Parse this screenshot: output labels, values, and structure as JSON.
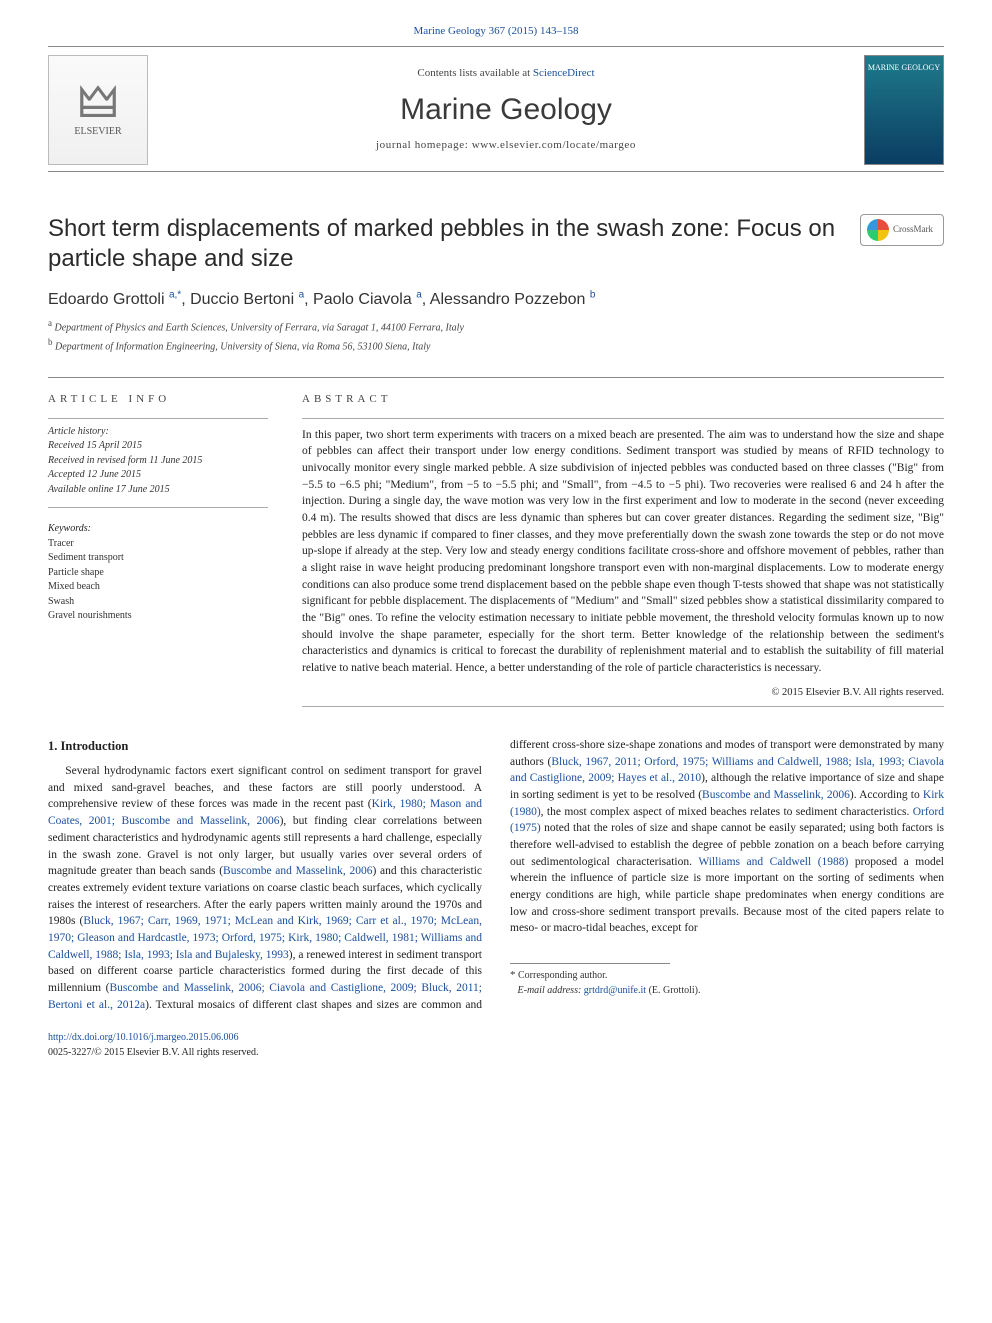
{
  "meta": {
    "citation": "Marine Geology 367 (2015) 143–158",
    "contents_line_prefix": "Contents lists available at ",
    "contents_line_link": "ScienceDirect",
    "journal_title": "Marine Geology",
    "homepage_line": "journal homepage: www.elsevier.com/locate/margeo",
    "publisher": "ELSEVIER",
    "cover_label": "MARINE GEOLOGY",
    "crossmark": "CrossMark"
  },
  "colors": {
    "link": "#1a4f9c",
    "text": "#222222",
    "rule": "#888888",
    "cover_grad_top": "#1f7a8c",
    "cover_grad_bottom": "#0a3d62"
  },
  "typography": {
    "body_pt": 11.5,
    "title_pt": 24,
    "journal_title_pt": 30,
    "abstract_pt": 11.5,
    "small_pt": 10
  },
  "title": "Short term displacements of marked pebbles in the swash zone: Focus on particle shape and size",
  "authors_html": "Edoardo Grottoli <sup>a,*</sup>, Duccio Bertoni <sup>a</sup>, Paolo Ciavola <sup>a</sup>, Alessandro Pozzebon <sup>b</sup>",
  "affiliations": [
    {
      "tag": "a",
      "text": "Department of Physics and Earth Sciences, University of Ferrara, via Saragat 1, 44100 Ferrara, Italy"
    },
    {
      "tag": "b",
      "text": "Department of Information Engineering, University of Siena, via Roma 56, 53100 Siena, Italy"
    }
  ],
  "article_info": {
    "label": "ARTICLE INFO",
    "history_label": "Article history:",
    "history": [
      "Received 15 April 2015",
      "Received in revised form 11 June 2015",
      "Accepted 12 June 2015",
      "Available online 17 June 2015"
    ],
    "keywords_label": "Keywords:",
    "keywords": [
      "Tracer",
      "Sediment transport",
      "Particle shape",
      "Mixed beach",
      "Swash",
      "Gravel nourishments"
    ]
  },
  "abstract": {
    "label": "ABSTRACT",
    "text": "In this paper, two short term experiments with tracers on a mixed beach are presented. The aim was to understand how the size and shape of pebbles can affect their transport under low energy conditions. Sediment transport was studied by means of RFID technology to univocally monitor every single marked pebble. A size subdivision of injected pebbles was conducted based on three classes (\"Big\" from −5.5 to −6.5 phi; \"Medium\", from −5 to −5.5 phi; and \"Small\", from −4.5 to −5 phi). Two recoveries were realised 6 and 24 h after the injection. During a single day, the wave motion was very low in the first experiment and low to moderate in the second (never exceeding 0.4 m). The results showed that discs are less dynamic than spheres but can cover greater distances. Regarding the sediment size, \"Big\" pebbles are less dynamic if compared to finer classes, and they move preferentially down the swash zone towards the step or do not move up-slope if already at the step. Very low and steady energy conditions facilitate cross-shore and offshore movement of pebbles, rather than a slight raise in wave height producing predominant longshore transport even with non-marginal displacements. Low to moderate energy conditions can also produce some trend displacement based on the pebble shape even though T-tests showed that shape was not statistically significant for pebble displacement. The displacements of \"Medium\" and \"Small\" sized pebbles show a statistical dissimilarity compared to the \"Big\" ones. To refine the velocity estimation necessary to initiate pebble movement, the threshold velocity formulas known up to now should involve the shape parameter, especially for the short term. Better knowledge of the relationship between the sediment's characteristics and dynamics is critical to forecast the durability of replenishment material and to establish the suitability of fill material relative to native beach material. Hence, a better understanding of the role of particle characteristics is necessary.",
    "copyright": "© 2015 Elsevier B.V. All rights reserved."
  },
  "body": {
    "h1": "1. Introduction",
    "p1_pre": "Several hydrodynamic factors exert significant control on sediment transport for gravel and mixed sand-gravel beaches, and these factors are still poorly understood. A comprehensive review of these forces was made in the recent past (",
    "p1_link1": "Kirk, 1980; Mason and Coates, 2001; Buscombe and Masselink, 2006",
    "p1_mid1": "), but finding clear correlations between sediment characteristics and hydrodynamic agents still represents a hard challenge, especially in the swash zone. Gravel is not only larger, but usually varies over several orders of magnitude greater than beach sands (",
    "p1_link2": "Buscombe and Masselink, 2006",
    "p1_mid2": ") and this characteristic creates extremely evident texture variations on coarse clastic beach surfaces, which cyclically raises the interest of researchers. After the early papers written mainly around the 1970s and 1980s (",
    "p1_link3": "Bluck, 1967; Carr, 1969, 1971; McLean and Kirk, 1969; Carr et al., 1970; McLean, 1970; Gleason and Hardcastle, 1973; Orford, 1975; Kirk, 1980; Caldwell, 1981; Williams and Caldwell, 1988; Isla, 1993; Isla and Bujalesky, 1993",
    "p1_mid3": "), a renewed interest in sediment transport based on different coarse particle characteristics formed during the first decade of this millennium (",
    "p1_link4": "Buscombe and Masselink, 2006; Ciavola and Castiglione, 2009; Bluck, 2011; Bertoni et al., 2012a",
    "p1_mid4": "). Textural mosaics of different clast shapes and sizes are common and different cross-shore size-shape zonations and modes of transport were demonstrated by many authors (",
    "p1_link5": "Bluck, 1967, 2011; Orford, 1975; Williams and Caldwell, 1988; Isla, 1993; Ciavola and Castiglione, 2009; Hayes et al., 2010",
    "p1_mid5": "), although the relative importance of size and shape in sorting sediment is yet to be resolved (",
    "p1_link6": "Buscombe and Masselink, 2006",
    "p1_mid6": "). According to ",
    "p1_link7": "Kirk (1980)",
    "p1_mid7": ", the most complex aspect of mixed beaches relates to sediment characteristics. ",
    "p1_link8": "Orford (1975)",
    "p1_mid8": " noted that the roles of size and shape cannot be easily separated; using both factors is therefore well-advised to establish the degree of pebble zonation on a beach before carrying out sedimentological characterisation. ",
    "p1_link9": "Williams and Caldwell (1988)",
    "p1_mid9": " proposed a model wherein the influence of particle size is more important on the sorting of sediments when energy conditions are high, while particle shape predominates when energy conditions are low and cross-shore sediment transport prevails. Because most of the cited papers relate to meso- or macro-tidal beaches, except for"
  },
  "footnote": {
    "corr": "Corresponding author.",
    "email_label": "E-mail address:",
    "email": "grtdrd@unife.it",
    "email_who": "(E. Grottoli)."
  },
  "bottom": {
    "doi": "http://dx.doi.org/10.1016/j.margeo.2015.06.006",
    "issn_line": "0025-3227/© 2015 Elsevier B.V. All rights reserved."
  }
}
